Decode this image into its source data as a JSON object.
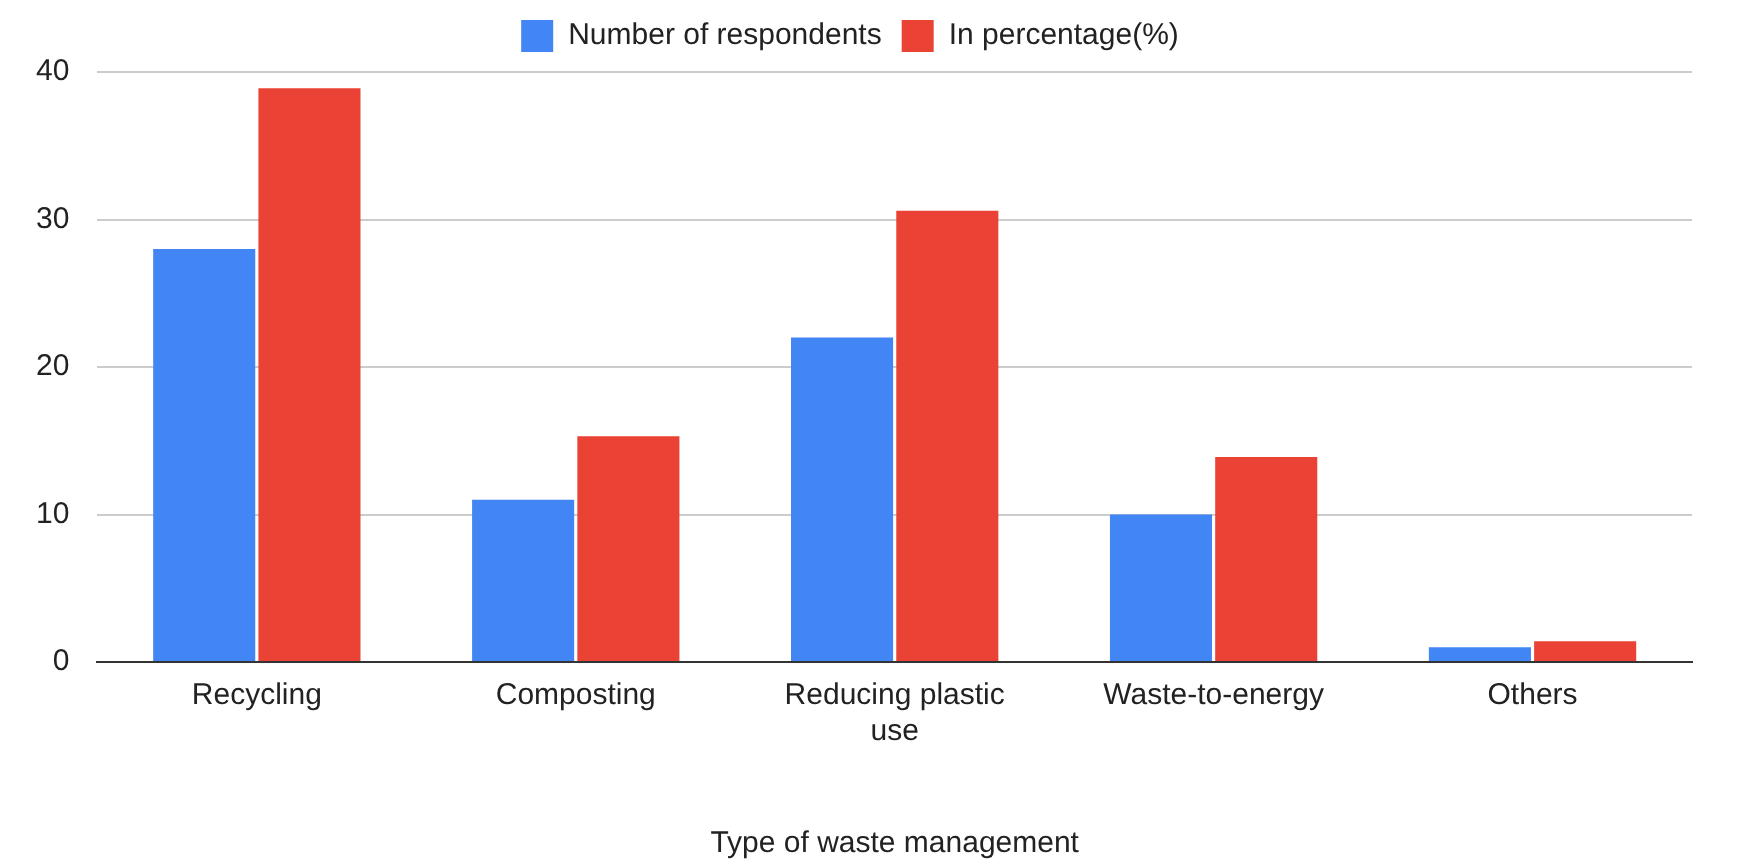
{
  "chart_data": {
    "type": "bar",
    "xlabel": "Type of waste management",
    "categories": [
      "Recycling",
      "Composting",
      "Reducing plastic use",
      "Waste-to-energy",
      "Others"
    ],
    "series": [
      {
        "name": "Number of respondents",
        "color": "#4285f4",
        "values": [
          28,
          11,
          22,
          10,
          1
        ]
      },
      {
        "name": "In percentage(%)",
        "color": "#ea4335",
        "values": [
          38.9,
          15.3,
          30.6,
          13.9,
          1.4
        ]
      }
    ],
    "ylim": [
      0,
      40
    ],
    "yticks": [
      0,
      10,
      20,
      30,
      40
    ],
    "grid": "y",
    "legend": "top"
  }
}
